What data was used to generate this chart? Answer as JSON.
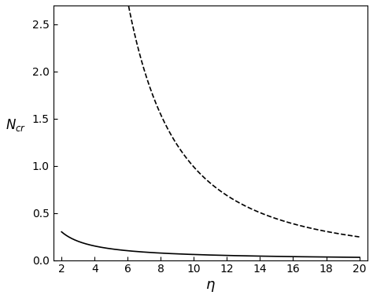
{
  "title": "",
  "xlabel": "$\\eta$",
  "ylabel": "$N_{cr}$",
  "xlim": [
    1.5,
    20.5
  ],
  "ylim": [
    0,
    2.7
  ],
  "xticks": [
    2,
    4,
    6,
    8,
    10,
    12,
    14,
    16,
    18,
    20
  ],
  "yticks": [
    0,
    0.5,
    1.0,
    1.5,
    2.0,
    2.5
  ],
  "x_start": 2.0,
  "x_end": 20.0,
  "n_points": 500,
  "dashed_scale": 10.0,
  "solid_scale": 1.2,
  "solid_power": 1.0,
  "dashed_power": 2.0,
  "line_color": "#000000",
  "solid_linewidth": 1.2,
  "dashed_linewidth": 1.2,
  "figsize": [
    4.74,
    3.8
  ],
  "dpi": 100
}
